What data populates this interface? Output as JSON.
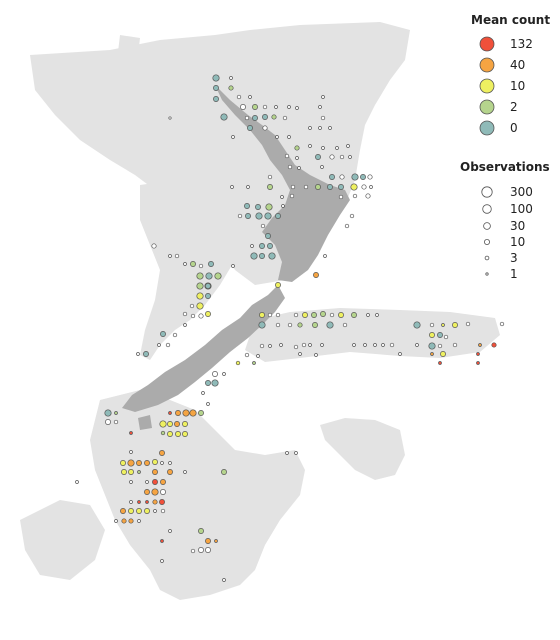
{
  "colors": {
    "background": "#ffffff",
    "seafloor": "#e3e3e3",
    "land": "#ababab",
    "marker_stroke": "#555555"
  },
  "legend_mean": {
    "title": "Mean count",
    "items": [
      {
        "label": "132",
        "color": "#f0503a"
      },
      {
        "label": "40",
        "color": "#f5a442"
      },
      {
        "label": "10",
        "color": "#eef061"
      },
      {
        "label": "2",
        "color": "#b5d48d"
      },
      {
        "label": "0",
        "color": "#8fbab8"
      }
    ]
  },
  "legend_obs": {
    "title": "Observations",
    "items": [
      {
        "label": "300"
      },
      {
        "label": "100"
      },
      {
        "label": "30"
      },
      {
        "label": "10"
      },
      {
        "label": "3"
      },
      {
        "label": "1"
      }
    ]
  }
}
